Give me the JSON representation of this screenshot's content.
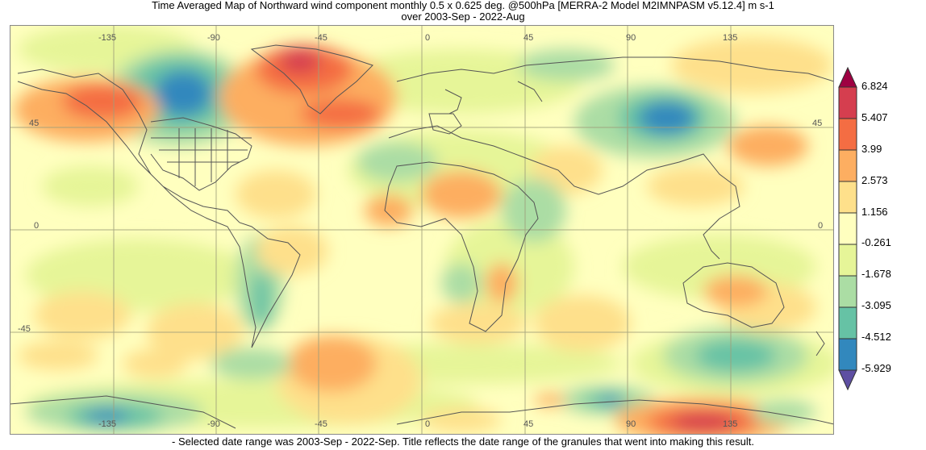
{
  "title": {
    "line1": "Time Averaged Map of Northward wind component monthly 0.5 x 0.625 deg. @500hPa [MERRA-2 Model M2IMNPASM v5.12.4] m s-1",
    "line2": "over 2003-Sep - 2022-Aug"
  },
  "footnote": "- Selected date range was 2003-Sep - 2022-Sep. Title reflects the date range of the granules that went into making this result.",
  "map": {
    "lon_labels_top": [
      "-135",
      "-90",
      "-45",
      "0",
      "45",
      "90",
      "135"
    ],
    "lon_labels_bottom": [
      "-135",
      "-90",
      "-45",
      "0",
      "45",
      "90",
      "135"
    ],
    "lat_labels_left": [
      "45",
      "0",
      "-45"
    ],
    "lat_labels_right": [
      "45",
      "0"
    ]
  },
  "colorbar": {
    "labels": [
      "6.824",
      "5.407",
      "3.99",
      "2.573",
      "1.156",
      "-0.261",
      "-1.678",
      "-3.095",
      "-4.512",
      "-5.929"
    ],
    "colors": [
      "#d53e4f",
      "#f46d43",
      "#fdae61",
      "#fee08b",
      "#ffffbf",
      "#e6f598",
      "#abdda4",
      "#66c2a5",
      "#3288bd"
    ],
    "over_color": "#9e0142",
    "under_color": "#5e4fa2"
  }
}
